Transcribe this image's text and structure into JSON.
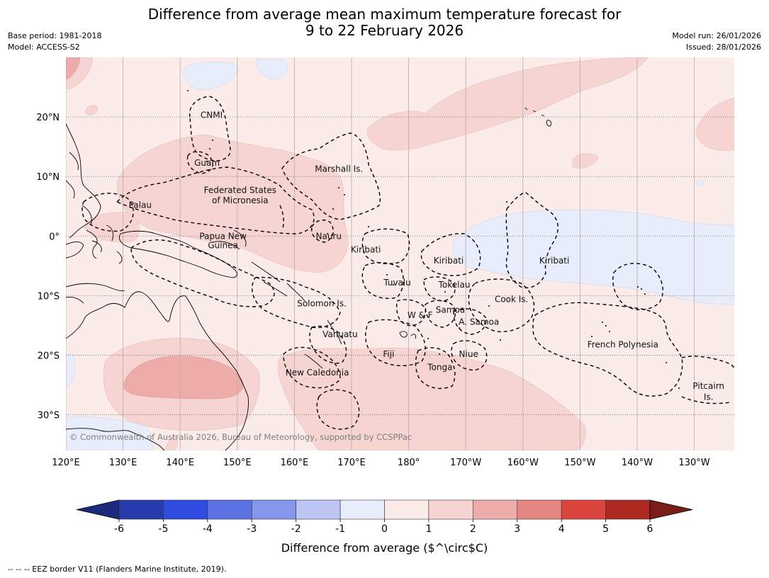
{
  "header": {
    "title_line1": "Difference from average mean maximum temperature forecast for",
    "title_line2": "9 to 22 February 2026",
    "base_period": "Base period: 1981-2018",
    "model": "Model: ACCESS-S2",
    "model_run": "Model run: 26/01/2026",
    "issued": "Issued: 28/01/2026"
  },
  "map": {
    "lon_range": [
      120,
      237
    ],
    "lat_range": [
      -36,
      30
    ],
    "lon_ticks": [
      {
        "lon": 120,
        "label": "120°E"
      },
      {
        "lon": 130,
        "label": "130°E"
      },
      {
        "lon": 140,
        "label": "140°E"
      },
      {
        "lon": 150,
        "label": "150°E"
      },
      {
        "lon": 160,
        "label": "160°E"
      },
      {
        "lon": 170,
        "label": "170°E"
      },
      {
        "lon": 180,
        "label": "180°"
      },
      {
        "lon": 190,
        "label": "170°W"
      },
      {
        "lon": 200,
        "label": "160°W"
      },
      {
        "lon": 210,
        "label": "150°W"
      },
      {
        "lon": 220,
        "label": "140°W"
      },
      {
        "lon": 230,
        "label": "130°W"
      }
    ],
    "lat_ticks": [
      {
        "lat": 20,
        "label": "20°N"
      },
      {
        "lat": 10,
        "label": "10°N"
      },
      {
        "lat": 0,
        "label": "0°"
      },
      {
        "lat": -10,
        "label": "10°S"
      },
      {
        "lat": -20,
        "label": "20°S"
      },
      {
        "lat": -30,
        "label": "30°S"
      }
    ],
    "copyright": "© Commonwealth of Australia 2026, Bureau of Meteorology, supported by CCSPPac",
    "labels": [
      {
        "text": "CNMI",
        "lon": 145.5,
        "lat": 20.3
      },
      {
        "text": "Guam",
        "lon": 144.7,
        "lat": 12.3
      },
      {
        "text": "Marshall Is.",
        "lon": 167.8,
        "lat": 11.3
      },
      {
        "text": "Federated States",
        "lon": 150.5,
        "lat": 7.7
      },
      {
        "text": "of Micronesia",
        "lon": 150.5,
        "lat": 6.0
      },
      {
        "text": "Palau",
        "lon": 133.0,
        "lat": 5.2
      },
      {
        "text": "Papua New",
        "lon": 147.5,
        "lat": 0.0
      },
      {
        "text": "Guinea",
        "lon": 147.5,
        "lat": -1.6
      },
      {
        "text": "Nauru",
        "lon": 166.0,
        "lat": 0.0
      },
      {
        "text": "Kiribati",
        "lon": 172.5,
        "lat": -2.3
      },
      {
        "text": "Kiribati",
        "lon": 187.0,
        "lat": -4.1
      },
      {
        "text": "Kiribati",
        "lon": 205.5,
        "lat": -4.1
      },
      {
        "text": "Tuvalu",
        "lon": 178.0,
        "lat": -7.8
      },
      {
        "text": "Tokelau",
        "lon": 188.0,
        "lat": -8.2
      },
      {
        "text": "Cook Is.",
        "lon": 198.0,
        "lat": -10.6
      },
      {
        "text": "Solomon Is.",
        "lon": 164.8,
        "lat": -11.3
      },
      {
        "text": "Samoa",
        "lon": 187.3,
        "lat": -12.4
      },
      {
        "text": "W & F",
        "lon": 182.0,
        "lat": -13.3
      },
      {
        "text": "A. Samoa",
        "lon": 192.3,
        "lat": -14.4
      },
      {
        "text": "Vanuatu",
        "lon": 168.0,
        "lat": -16.5
      },
      {
        "text": "French Polynesia",
        "lon": 217.5,
        "lat": -18.2
      },
      {
        "text": "Fiji",
        "lon": 176.5,
        "lat": -19.8
      },
      {
        "text": "Niue",
        "lon": 190.5,
        "lat": -19.8
      },
      {
        "text": "Tonga",
        "lon": 185.5,
        "lat": -22.0
      },
      {
        "text": "New Caledonia",
        "lon": 164.0,
        "lat": -22.9
      },
      {
        "text": "Pitcairn",
        "lon": 232.5,
        "lat": -25.2
      },
      {
        "text": "Is.",
        "lon": 232.5,
        "lat": -27.0
      }
    ]
  },
  "colors": {
    "base_fill": "#fbebe9",
    "ocean_neg1": "#e8edfb",
    "pos12": "#f5d4d2",
    "pos23": "#edacaa"
  },
  "colorbar": {
    "ticks": [
      "-6",
      "-5",
      "-4",
      "-3",
      "-2",
      "-1",
      "0",
      "1",
      "2",
      "3",
      "4",
      "5",
      "6"
    ],
    "colors": [
      "#273aa9",
      "#304bdf",
      "#5c71e3",
      "#8696ea",
      "#bcc5f4",
      "#e8edfb",
      "#fbebe9",
      "#f5d4d2",
      "#edacaa",
      "#e48681",
      "#d9453c",
      "#ad2a21"
    ],
    "under_color": "#1b2a7a",
    "over_color": "#7a1c18",
    "label": "Difference from average ($^\\circ$C)"
  },
  "footnote": "--  --  -- EEZ border V11 (Flanders Marine Institute, 2019)."
}
